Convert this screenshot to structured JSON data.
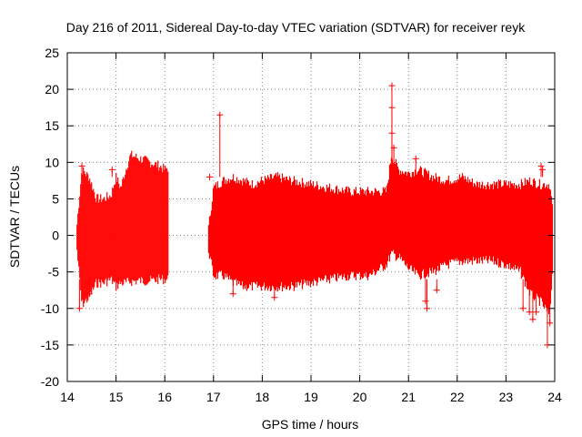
{
  "chart_data": {
    "type": "scatter",
    "title": "Day 216 of 2011, Sidereal Day-to-day VTEC variation (SDTVAR) for receiver reyk",
    "xlabel": "GPS time / hours",
    "ylabel": "SDTVAR / TECUs",
    "xlim": [
      14,
      24
    ],
    "ylim": [
      -20,
      25
    ],
    "xticks": [
      "14",
      "15",
      "16",
      "17",
      "18",
      "19",
      "20",
      "21",
      "22",
      "23",
      "24"
    ],
    "yticks": [
      "-20",
      "-15",
      "-10",
      "-5",
      "0",
      "5",
      "10",
      "15",
      "20",
      "25"
    ],
    "grid": "dotted",
    "series_color": "#ff0000",
    "marker": "plus",
    "envelope_segments": [
      {
        "x": [
          14.2,
          14.3,
          14.45,
          14.6,
          14.75,
          14.9,
          15.0,
          15.1,
          15.2,
          15.3,
          15.5,
          15.7,
          15.9,
          16.0,
          16.08
        ],
        "upper": [
          1.5,
          9.0,
          8.0,
          5.0,
          5.0,
          5.5,
          8.0,
          6.5,
          9.0,
          11.0,
          10.5,
          10.0,
          9.5,
          9.0,
          9.3
        ],
        "lower": [
          -2.0,
          -9.5,
          -8.5,
          -6.5,
          -6.5,
          -6.0,
          -7.0,
          -6.5,
          -6.5,
          -6.3,
          -6.2,
          -6.2,
          -6.0,
          -6.0,
          -6.0
        ]
      },
      {
        "x": [
          16.9,
          17.0,
          17.2,
          17.4,
          17.6,
          17.8,
          18.0,
          18.3,
          18.6,
          19.0,
          19.4,
          19.8,
          20.2,
          20.55,
          20.65,
          20.8,
          21.0,
          21.2,
          21.5,
          21.8,
          22.1,
          22.4,
          22.7,
          23.0,
          23.3,
          23.5,
          23.7,
          23.9,
          23.97
        ],
        "upper": [
          1.0,
          6.5,
          7.5,
          8.0,
          7.5,
          7.0,
          7.5,
          8.0,
          7.5,
          7.0,
          6.5,
          6.0,
          6.0,
          6.0,
          11.0,
          9.0,
          8.5,
          9.0,
          8.0,
          7.5,
          8.0,
          7.0,
          7.0,
          7.0,
          7.0,
          7.5,
          7.0,
          7.0,
          3.0
        ],
        "lower": [
          -2.0,
          -5.5,
          -5.5,
          -6.5,
          -7.0,
          -7.0,
          -7.0,
          -7.0,
          -7.0,
          -6.5,
          -6.0,
          -5.5,
          -5.5,
          -4.0,
          -2.5,
          -3.0,
          -4.5,
          -5.5,
          -5.0,
          -4.0,
          -3.5,
          -3.5,
          -3.5,
          -4.0,
          -5.0,
          -8.0,
          -9.0,
          -11.0,
          -3.0
        ]
      }
    ],
    "outliers": [
      {
        "x": 14.25,
        "y": -10.0
      },
      {
        "x": 14.3,
        "y": 9.5
      },
      {
        "x": 14.45,
        "y": -8.0
      },
      {
        "x": 14.92,
        "y": 9.0
      },
      {
        "x": 17.13,
        "y": 16.5
      },
      {
        "x": 16.92,
        "y": 8.0
      },
      {
        "x": 17.05,
        "y": -5.0
      },
      {
        "x": 17.4,
        "y": -8.0
      },
      {
        "x": 18.25,
        "y": -8.5
      },
      {
        "x": 20.66,
        "y": 20.5
      },
      {
        "x": 20.66,
        "y": 17.5
      },
      {
        "x": 20.66,
        "y": 14.0
      },
      {
        "x": 20.7,
        "y": 12.0
      },
      {
        "x": 21.15,
        "y": 10.5
      },
      {
        "x": 21.35,
        "y": -9.0
      },
      {
        "x": 21.38,
        "y": -10.0
      },
      {
        "x": 21.58,
        "y": -7.5
      },
      {
        "x": 23.35,
        "y": -10.0
      },
      {
        "x": 23.48,
        "y": -10.5
      },
      {
        "x": 23.55,
        "y": -11.5
      },
      {
        "x": 23.62,
        "y": -10.5
      },
      {
        "x": 23.72,
        "y": 9.5
      },
      {
        "x": 23.75,
        "y": 9.0
      },
      {
        "x": 23.85,
        "y": -15.0
      },
      {
        "x": 23.9,
        "y": -12.0
      }
    ]
  }
}
